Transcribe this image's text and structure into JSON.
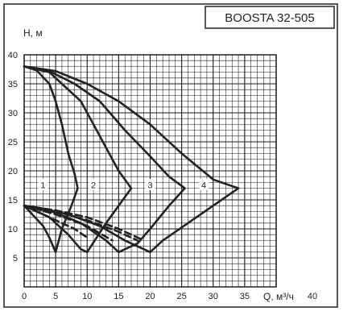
{
  "chart_data": {
    "type": "line",
    "title": "BOOSTA 32-505",
    "ylabel": "H, м",
    "xlabel": "Q, м³/ч",
    "xlim": [
      0,
      40
    ],
    "ylim": [
      0,
      40
    ],
    "x_ticks": [
      "0",
      "5",
      "10",
      "15",
      "20",
      "25",
      "30",
      "35",
      "40"
    ],
    "y_ticks": [
      "5",
      "10",
      "15",
      "20",
      "25",
      "30",
      "35",
      "40"
    ],
    "grid": true,
    "colors": {
      "curve": "#222222",
      "grid": "#1a1a1a",
      "text": "#222222"
    },
    "series": [
      {
        "name": "1",
        "style": "solid",
        "points": [
          [
            0,
            38
          ],
          [
            2,
            37.3
          ],
          [
            4,
            35
          ],
          [
            5,
            32
          ],
          [
            6,
            28
          ],
          [
            7,
            23
          ],
          [
            8,
            19.5
          ],
          [
            8.5,
            17
          ],
          [
            7.5,
            14
          ],
          [
            6,
            10
          ],
          [
            5,
            6
          ],
          [
            4,
            8.5
          ],
          [
            3,
            10.5
          ],
          [
            0,
            14
          ]
        ]
      },
      {
        "name": "2",
        "style": "solid",
        "points": [
          [
            0,
            38
          ],
          [
            4,
            37
          ],
          [
            6,
            35
          ],
          [
            9,
            32
          ],
          [
            11,
            28
          ],
          [
            13,
            24
          ],
          [
            15,
            20
          ],
          [
            17,
            17
          ],
          [
            15,
            14
          ],
          [
            13,
            11
          ],
          [
            10,
            6
          ],
          [
            9,
            6.5
          ],
          [
            7,
            9
          ],
          [
            4,
            12
          ],
          [
            2,
            13
          ],
          [
            0,
            14
          ]
        ]
      },
      {
        "name": "3",
        "style": "solid",
        "points": [
          [
            0,
            38
          ],
          [
            4,
            37.2
          ],
          [
            8,
            35
          ],
          [
            12,
            32
          ],
          [
            16,
            27
          ],
          [
            20,
            22.5
          ],
          [
            23,
            19
          ],
          [
            25.5,
            17
          ],
          [
            23,
            14
          ],
          [
            20,
            10
          ],
          [
            18,
            7.5
          ],
          [
            15,
            6
          ],
          [
            13,
            8
          ],
          [
            9,
            11
          ],
          [
            5,
            12.8
          ],
          [
            2,
            13.5
          ],
          [
            0,
            14
          ]
        ]
      },
      {
        "name": "4",
        "style": "solid",
        "points": [
          [
            0,
            38
          ],
          [
            5,
            37.2
          ],
          [
            10,
            35
          ],
          [
            15,
            32
          ],
          [
            20,
            28
          ],
          [
            25,
            23
          ],
          [
            30,
            18.5
          ],
          [
            34,
            17
          ],
          [
            30,
            14
          ],
          [
            26,
            11
          ],
          [
            22,
            8
          ],
          [
            20,
            6
          ],
          [
            16,
            8
          ],
          [
            12,
            10.5
          ],
          [
            7,
            12.5
          ],
          [
            3,
            13.5
          ],
          [
            0,
            14
          ]
        ]
      },
      {
        "name": "",
        "style": "dashed",
        "points": [
          [
            0,
            14
          ],
          [
            4,
            12
          ],
          [
            8,
            10
          ],
          [
            10,
            8.5
          ]
        ]
      },
      {
        "name": "",
        "style": "dashed",
        "points": [
          [
            0,
            14
          ],
          [
            5,
            12.5
          ],
          [
            10,
            10.5
          ],
          [
            14,
            8
          ]
        ]
      },
      {
        "name": "",
        "style": "dashed",
        "points": [
          [
            0,
            14
          ],
          [
            5,
            13
          ],
          [
            10,
            11.5
          ],
          [
            15,
            9.5
          ],
          [
            18,
            8
          ]
        ]
      },
      {
        "name": "",
        "style": "dashed",
        "points": [
          [
            0,
            14
          ],
          [
            5,
            13.2
          ],
          [
            10,
            12
          ],
          [
            15,
            10
          ],
          [
            19,
            8
          ]
        ]
      }
    ],
    "curve_labels": [
      {
        "text": "1",
        "x": 3,
        "y": 17.5
      },
      {
        "text": "2",
        "x": 11,
        "y": 17.5
      },
      {
        "text": "3",
        "x": 20,
        "y": 17.5
      },
      {
        "text": "4",
        "x": 28.5,
        "y": 17.5
      }
    ]
  }
}
